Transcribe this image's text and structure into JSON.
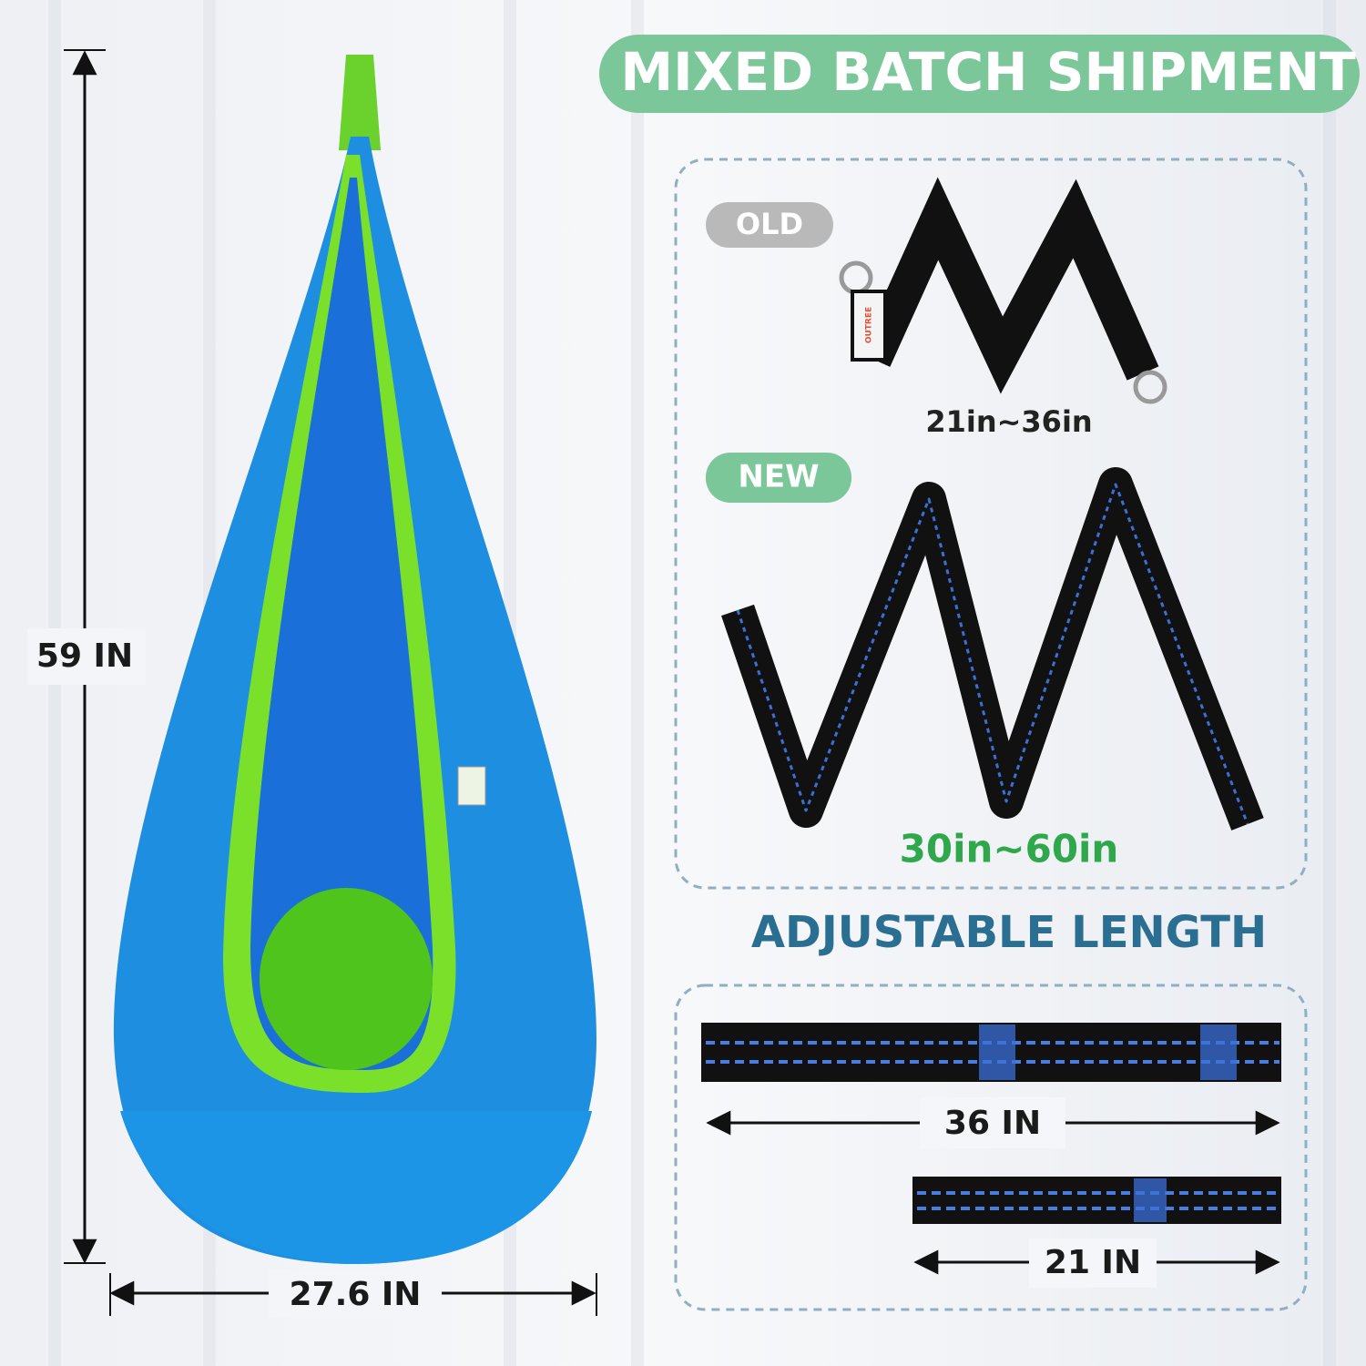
{
  "header": {
    "title": "MIXED BATCH SHIPMENT"
  },
  "pod": {
    "height_label": "59 IN",
    "width_label": "27.6 IN"
  },
  "comparison": {
    "old": {
      "badge": "OLD",
      "range": "21in~36in",
      "brand": "OUTREE"
    },
    "new": {
      "badge": "NEW",
      "range": "30in~60in"
    }
  },
  "section_title": "ADJUSTABLE LENGTH",
  "straps": {
    "long": "36 IN",
    "short": "21 IN"
  }
}
